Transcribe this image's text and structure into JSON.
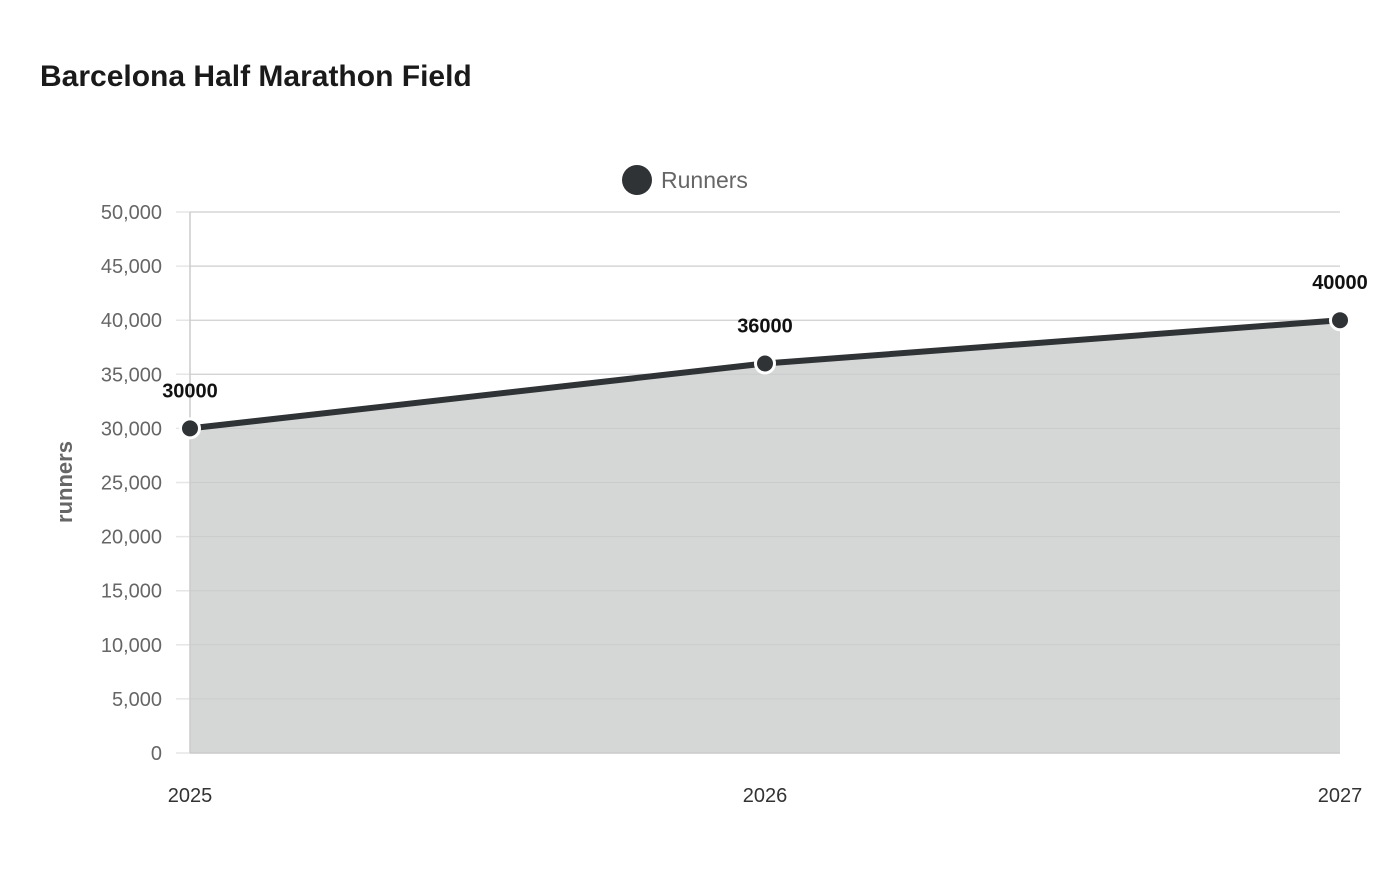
{
  "title": "Barcelona Half Marathon Field",
  "chart_data": {
    "type": "area",
    "title": "Barcelona Half Marathon Field",
    "categories": [
      "2025",
      "2026",
      "2027"
    ],
    "series": [
      {
        "name": "Runners",
        "values": [
          30000,
          36000,
          40000
        ]
      }
    ],
    "data_labels": [
      "30000",
      "36000",
      "40000"
    ],
    "xlabel": "",
    "ylabel": "runners",
    "ylim": [
      0,
      50000
    ],
    "yticks": [
      0,
      5000,
      10000,
      15000,
      20000,
      25000,
      30000,
      35000,
      40000,
      45000,
      50000
    ],
    "ytick_labels": [
      "0",
      "5,000",
      "10,000",
      "15,000",
      "20,000",
      "25,000",
      "30,000",
      "35,000",
      "40,000",
      "45,000",
      "50,000"
    ],
    "grid": true,
    "legend": "top-center",
    "colors": {
      "line": "#2f3335",
      "area": "#d5d6d6",
      "grid": "#e6e6e6",
      "axis": "#cccccc",
      "tick_text": "#666666",
      "label_text": "#111111"
    }
  }
}
